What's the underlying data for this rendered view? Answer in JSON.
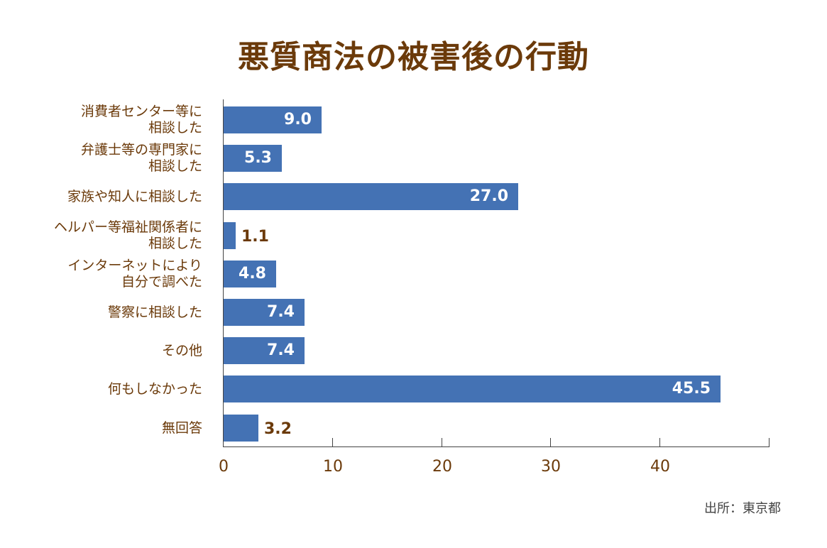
{
  "title": "悪質商法の被害後の行動",
  "source": "出所：東京都",
  "colors": {
    "bar": "#4472b4",
    "text": "#6b3a0a"
  },
  "chart_data": {
    "type": "bar",
    "orientation": "horizontal",
    "title": "悪質商法の被害後の行動",
    "xlabel": "",
    "ylabel": "",
    "xlim": [
      0,
      50
    ],
    "x_ticks": [
      0,
      10,
      20,
      30,
      40
    ],
    "grid": false,
    "legend": null,
    "categories": [
      "消費者センター等に\n相談した",
      "弁護士等の専門家に\n相談した",
      "家族や知人に相談した",
      "ヘルパー等福祉関係者に\n相談した",
      "インターネットにより\n自分で調べた",
      "警察に相談した",
      "その他",
      "何もしなかった",
      "無回答"
    ],
    "values": [
      9.0,
      5.3,
      27.0,
      1.1,
      4.8,
      7.4,
      7.4,
      45.5,
      3.2
    ],
    "value_labels": [
      "9.0",
      "5.3",
      "27.0",
      "1.1",
      "4.8",
      "7.4",
      "7.4",
      "45.5",
      "3.2"
    ],
    "source": "出所：東京都"
  }
}
